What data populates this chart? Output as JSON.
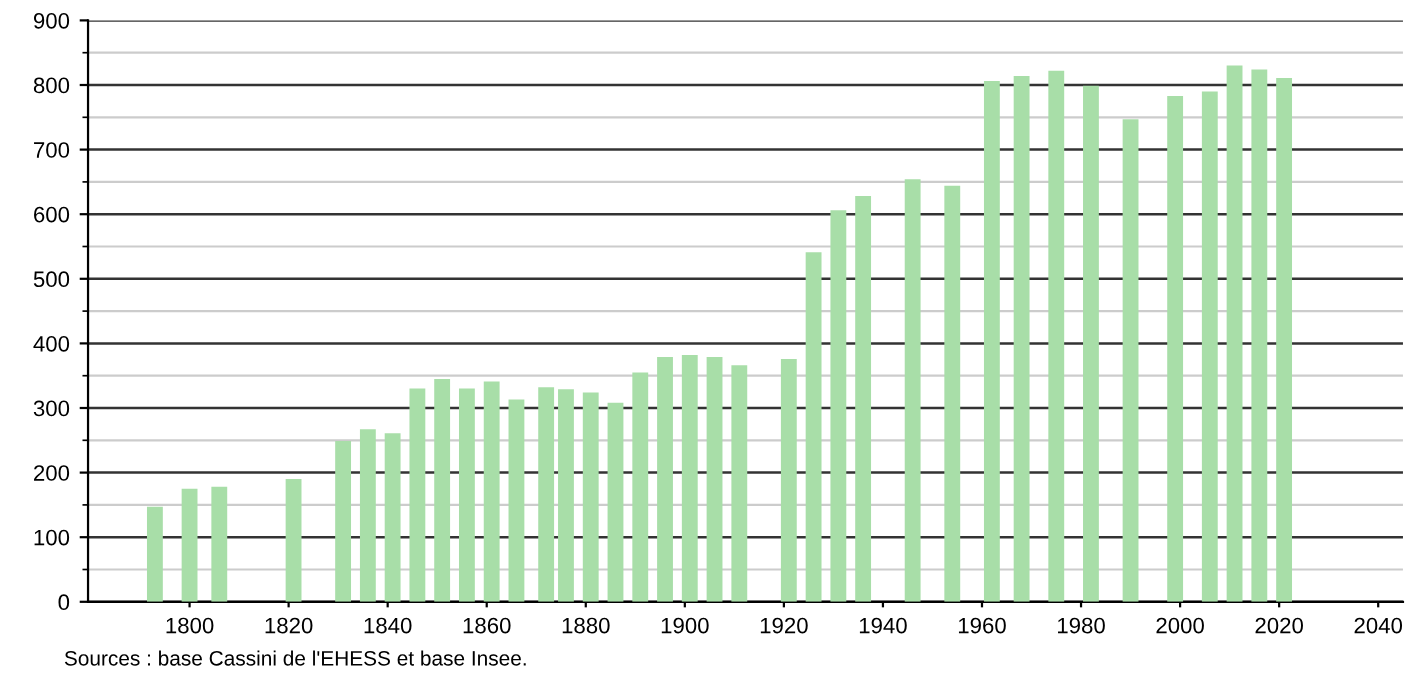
{
  "chart_data": {
    "type": "bar",
    "x": [
      1793,
      1800,
      1806,
      1821,
      1831,
      1836,
      1841,
      1846,
      1851,
      1856,
      1861,
      1866,
      1872,
      1876,
      1881,
      1886,
      1891,
      1896,
      1901,
      1906,
      1911,
      1921,
      1926,
      1931,
      1936,
      1946,
      1954,
      1962,
      1968,
      1975,
      1982,
      1990,
      1999,
      2006,
      2011,
      2016,
      2021
    ],
    "values": [
      147,
      175,
      178,
      190,
      249,
      267,
      261,
      330,
      345,
      330,
      341,
      313,
      332,
      329,
      324,
      308,
      355,
      379,
      382,
      379,
      366,
      376,
      541,
      606,
      628,
      654,
      644,
      806,
      814,
      822,
      799,
      747,
      783,
      790,
      830,
      824,
      811
    ],
    "color": "#a8dea8",
    "xlim": [
      1779.5,
      2045
    ],
    "xticks": [
      1800,
      1820,
      1840,
      1860,
      1880,
      1900,
      1920,
      1940,
      1960,
      1980,
      2000,
      2020,
      2040
    ],
    "ylim": [
      0,
      900
    ],
    "yticks": [
      0,
      100,
      200,
      300,
      400,
      500,
      600,
      700,
      800,
      900
    ],
    "grid": "y",
    "annotations": [
      "Sources : base Cassini de l'EHESS et base Insee."
    ]
  }
}
